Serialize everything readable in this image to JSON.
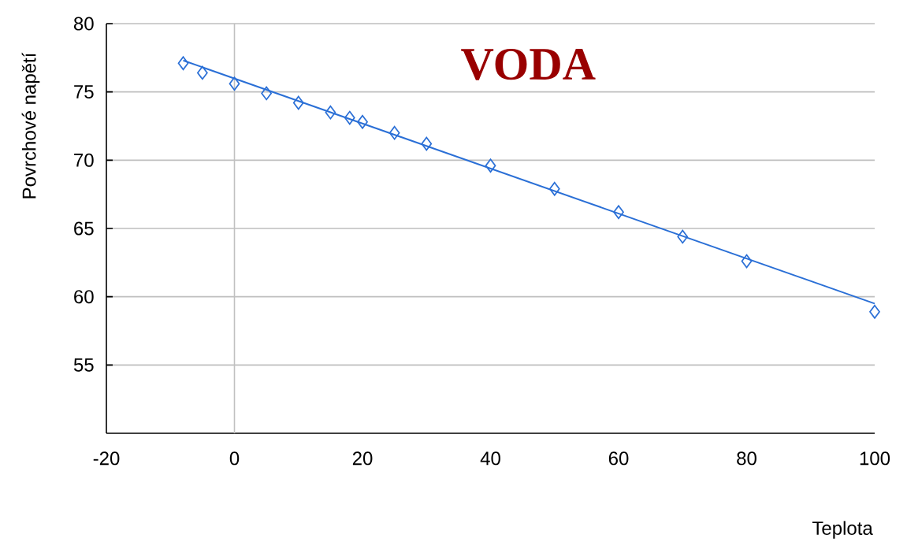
{
  "chart_data": {
    "type": "scatter",
    "title": "VODA",
    "xlabel": "Teplota",
    "ylabel": "Povrchové napětí",
    "xlim": [
      -20,
      100
    ],
    "xticks": [
      -20,
      0,
      20,
      40,
      60,
      80,
      100
    ],
    "ylim": [
      50,
      80
    ],
    "yticks": [
      55,
      60,
      65,
      70,
      75,
      80
    ],
    "grid": "y",
    "marker": "diamond",
    "ref_lines": [
      {
        "axis": "x",
        "value": 0,
        "color": "#c0c0c0"
      }
    ],
    "series": [
      {
        "color": "#2a6fd6",
        "x": [
          -8,
          -5,
          0,
          5,
          10,
          15,
          18,
          20,
          25,
          30,
          40,
          50,
          60,
          70,
          80,
          100
        ],
        "values": [
          77.1,
          76.4,
          75.6,
          74.9,
          74.2,
          73.5,
          73.1,
          72.8,
          72.0,
          71.2,
          69.6,
          67.9,
          66.2,
          64.4,
          62.6,
          58.9
        ]
      },
      {
        "type": "line",
        "marker": "none",
        "line_style": "solid",
        "color": "#2a6fd6",
        "x": [
          -8,
          100
        ],
        "values": [
          77.3,
          59.5
        ]
      }
    ]
  }
}
